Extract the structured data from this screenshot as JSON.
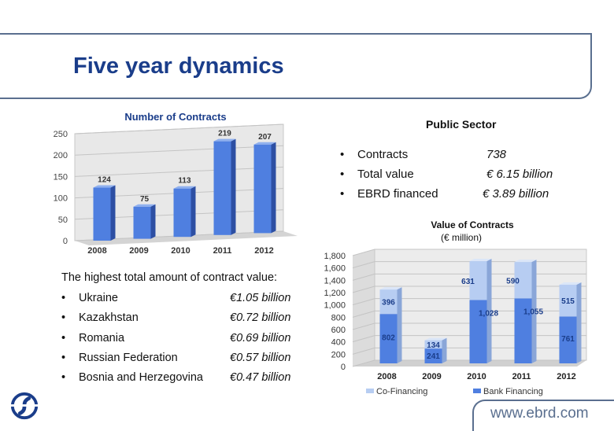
{
  "slide": {
    "title": "Five year dynamics",
    "url": "www.ebrd.com"
  },
  "public_sector": {
    "title": "Public Sector",
    "rows": [
      {
        "label": "Contracts",
        "value": "738"
      },
      {
        "label": "Total value",
        "value": "€ 6.15 billion"
      },
      {
        "label": "EBRD financed",
        "value": "€ 3.89 billion"
      }
    ]
  },
  "contract_values": {
    "title": "The highest total amount of contract value:",
    "rows": [
      {
        "country": "Ukraine",
        "value": "€1.05 billion"
      },
      {
        "country": "Kazakhstan",
        "value": "€0.72 billion"
      },
      {
        "country": "Romania",
        "value": "€0.69 billion"
      },
      {
        "country": "Russian Federation",
        "value": "€0.57 billion"
      },
      {
        "country": "Bosnia and Herzegovina",
        "value": "€0.47 billion"
      }
    ]
  },
  "bullet": "•",
  "colors": {
    "title": "#1a3d8a",
    "bar_main": "#4f7fe0",
    "bar_light": "#b7cdf2",
    "frame": "#5a6f8f"
  },
  "icons": {
    "logo": "ebrd-logo-icon"
  },
  "chart_data": [
    {
      "type": "bar",
      "title": "Number of Contracts",
      "categories": [
        "2008",
        "2009",
        "2010",
        "2011",
        "2012"
      ],
      "values": [
        124,
        75,
        113,
        219,
        207
      ],
      "ylim": [
        0,
        250
      ],
      "yticks": [
        0,
        50,
        100,
        150,
        200,
        250
      ],
      "grid": true,
      "legend": "none"
    },
    {
      "type": "bar",
      "stacked": true,
      "title": "Value of Contracts",
      "subtitle": "(€ million)",
      "categories": [
        "2008",
        "2009",
        "2010",
        "2011",
        "2012"
      ],
      "series": [
        {
          "name": "Bank Financing",
          "values": [
            802,
            241,
            1028,
            1055,
            761
          ]
        },
        {
          "name": "Co-Financing",
          "values": [
            396,
            134,
            631,
            590,
            515
          ]
        }
      ],
      "data_labels": {
        "Bank Financing": [
          "802",
          "241",
          "1,028",
          "1,055",
          "761"
        ],
        "Co-Financing": [
          "396",
          "134",
          "631",
          "590",
          "515"
        ]
      },
      "ylim": [
        0,
        1800
      ],
      "yticks": [
        "0",
        "200",
        "400",
        "600",
        "800",
        "1,000",
        "1,200",
        "1,400",
        "1,600",
        "1,800"
      ],
      "grid": true,
      "legend": "bottom"
    }
  ]
}
